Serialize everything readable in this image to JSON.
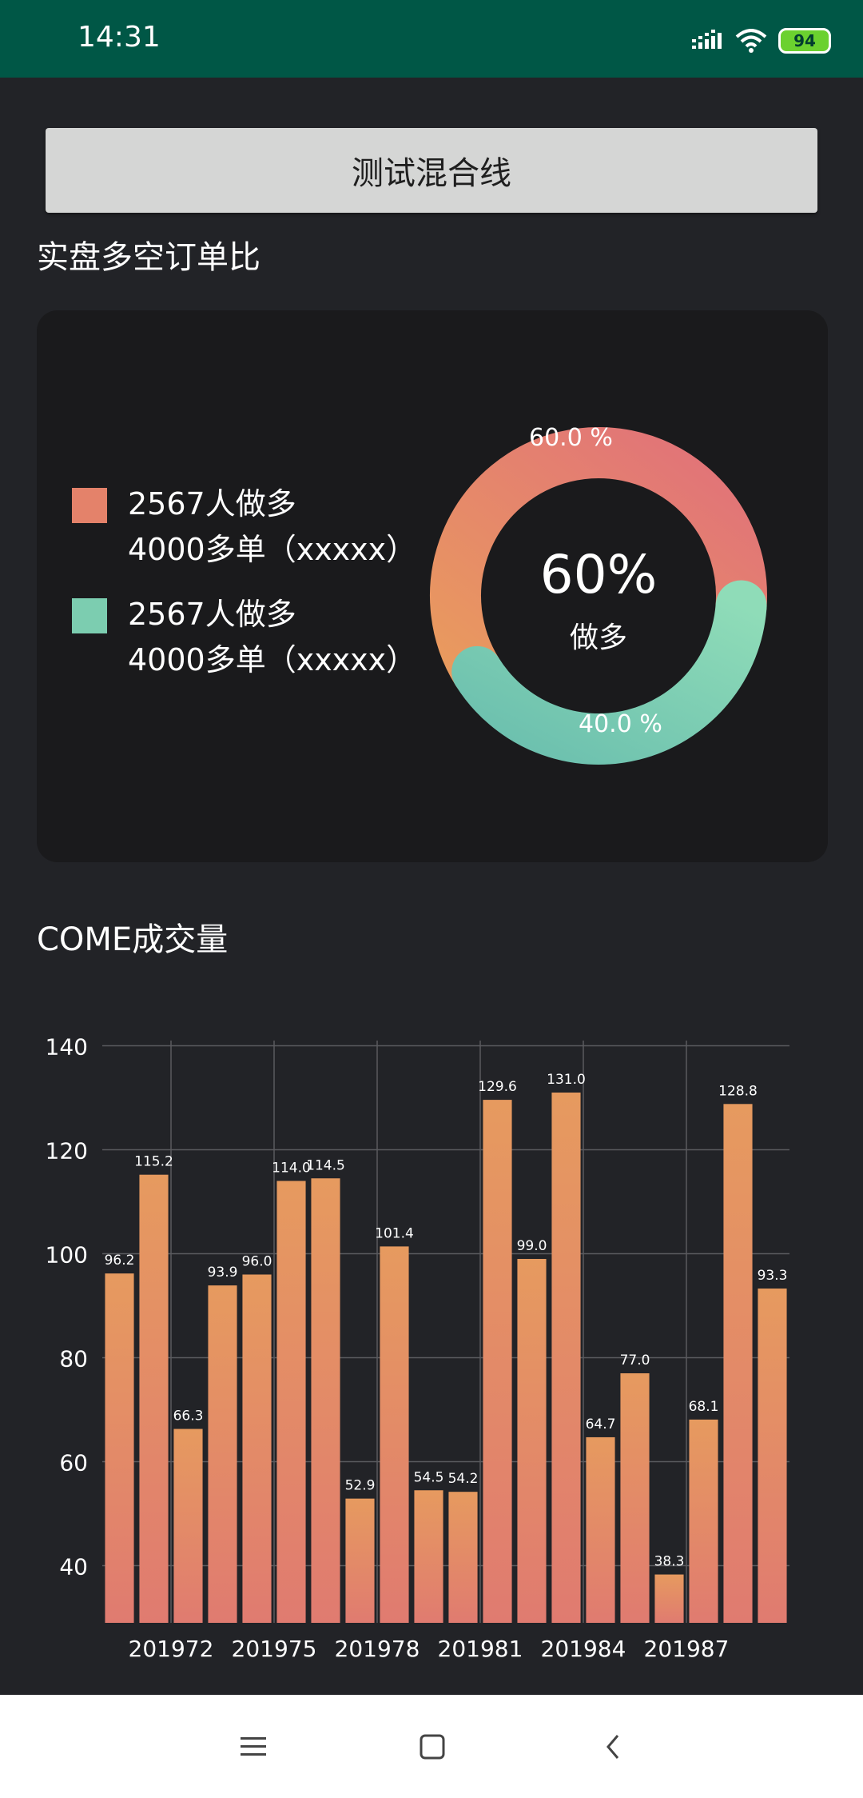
{
  "status_bar": {
    "time": "14:31",
    "battery": "94",
    "background": "#005746"
  },
  "test_button": {
    "label": "测试混合线"
  },
  "ratio_section": {
    "title": "实盘多空订单比",
    "legend": [
      {
        "line1": "2567人做多",
        "line2": "4000多单（xxxxx）",
        "color": "#e4826a"
      },
      {
        "line1": "2567人做多",
        "line2": "4000多单（xxxxx）",
        "color": "#7ccdb0"
      }
    ],
    "donut": {
      "center_value": "60%",
      "center_label": "做多",
      "segments": [
        {
          "label": "60.0 %",
          "value": 60.0,
          "color_start": "#e99a5e",
          "color_end": "#e1717a"
        },
        {
          "label": "40.0 %",
          "value": 40.0,
          "color_start": "#8fdcb8",
          "color_end": "#6bbfae"
        }
      ]
    }
  },
  "volume_section": {
    "title": "COME成交量"
  },
  "chart_data": {
    "type": "bar",
    "title": "",
    "xlabel": "",
    "ylabel": "",
    "ylim": [
      29,
      141
    ],
    "yticks": [
      40,
      60,
      80,
      100,
      120,
      140
    ],
    "xtick_labels": [
      "201972",
      "201975",
      "201978",
      "201981",
      "201984",
      "201987"
    ],
    "grid": true,
    "bar_color_top": "#e69a5f",
    "bar_color_bottom": "#e07b70",
    "values": [
      96.2,
      115.2,
      66.3,
      93.9,
      96.0,
      114.0,
      114.5,
      52.9,
      101.4,
      54.5,
      54.2,
      129.6,
      99.0,
      131.0,
      64.7,
      77.0,
      38.3,
      68.1,
      128.8,
      93.3
    ],
    "value_labels": [
      "96.2",
      "115.2",
      "66.3",
      "93.9",
      "96.0",
      "114.0",
      "114.5",
      "52.9",
      "101.4",
      "54.5",
      "54.2",
      "129.6",
      "99.0",
      "131.0",
      "64.7",
      "77.0",
      "38.3",
      "68.1",
      "128.8",
      "93.3"
    ]
  },
  "nav_bar": {
    "menu_icon": "menu-icon",
    "home_icon": "home-square-icon",
    "back_icon": "back-chevron-icon"
  }
}
